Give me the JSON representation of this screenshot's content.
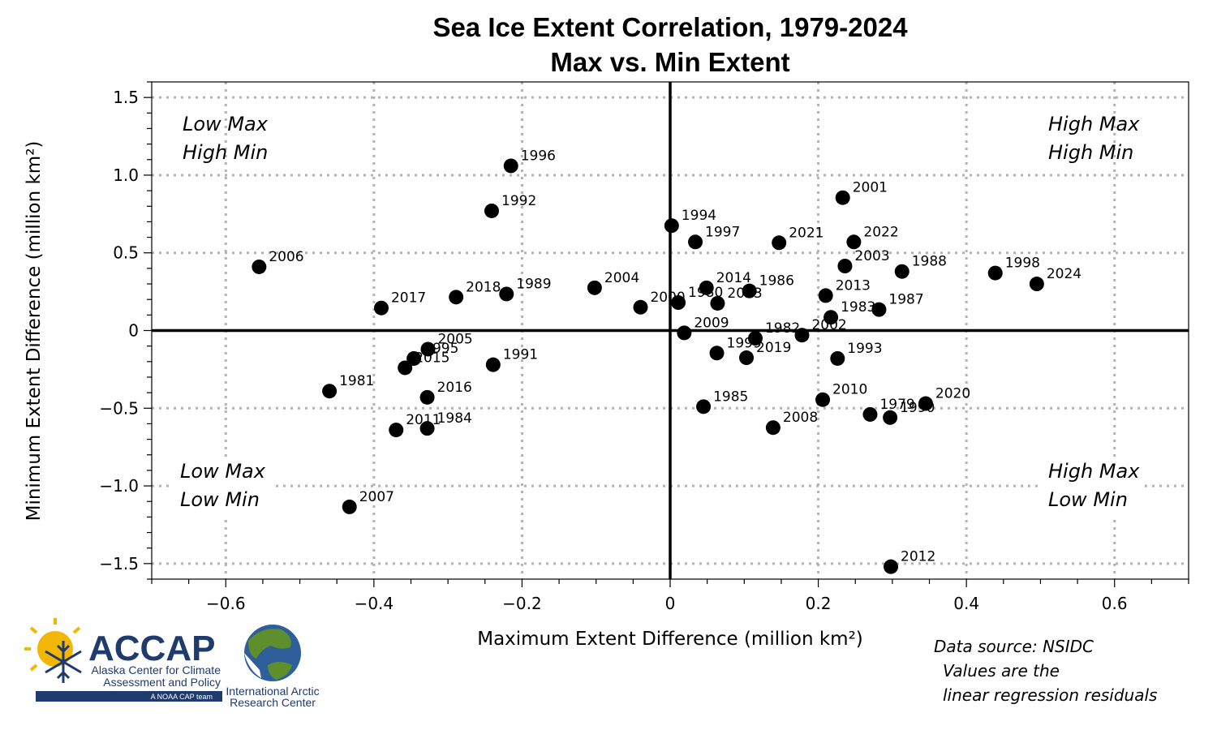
{
  "chart_data": {
    "type": "scatter",
    "title": "Sea Ice Extent Correlation, 1979-2024",
    "subtitle": "Max vs. Min Extent",
    "xlabel": "Maximum Extent Difference (million km²)",
    "ylabel": "Minimum Extent Difference (million km²)",
    "xlim": [
      -0.7,
      0.7
    ],
    "ylim": [
      -1.6,
      1.6
    ],
    "xticks": [
      -0.6,
      -0.4,
      -0.2,
      0,
      0.2,
      0.4,
      0.6
    ],
    "xtick_labels": [
      "−0.6",
      "−0.4",
      "−0.2",
      "0",
      "0.2",
      "0.4",
      "0.6"
    ],
    "yticks": [
      1.5,
      1.0,
      0.5,
      0,
      -0.5,
      -1.0,
      -1.5
    ],
    "ytick_labels": [
      "1.5",
      "1.0",
      "0.5",
      "0",
      "−0.5",
      "−1.0",
      "−1.5"
    ],
    "grid": true,
    "points": [
      {
        "label": "1979",
        "x": 0.27,
        "y": -0.54
      },
      {
        "label": "1980",
        "x": 0.011,
        "y": 0.18
      },
      {
        "label": "1981",
        "x": -0.46,
        "y": -0.39
      },
      {
        "label": "1982",
        "x": 0.115,
        "y": -0.05
      },
      {
        "label": "1983",
        "x": 0.217,
        "y": 0.085
      },
      {
        "label": "1984",
        "x": -0.328,
        "y": -0.63
      },
      {
        "label": "1985",
        "x": 0.045,
        "y": -0.49
      },
      {
        "label": "1986",
        "x": 0.107,
        "y": 0.255
      },
      {
        "label": "1987",
        "x": 0.282,
        "y": 0.135
      },
      {
        "label": "1988",
        "x": 0.313,
        "y": 0.38
      },
      {
        "label": "1989",
        "x": -0.221,
        "y": 0.235
      },
      {
        "label": "1990",
        "x": 0.297,
        "y": -0.56
      },
      {
        "label": "1991",
        "x": -0.239,
        "y": -0.22
      },
      {
        "label": "1992",
        "x": -0.241,
        "y": 0.77
      },
      {
        "label": "1993",
        "x": 0.226,
        "y": -0.18
      },
      {
        "label": "1994",
        "x": 0.002,
        "y": 0.675
      },
      {
        "label": "1995",
        "x": -0.346,
        "y": -0.18
      },
      {
        "label": "1996",
        "x": -0.215,
        "y": 1.06
      },
      {
        "label": "1997",
        "x": 0.034,
        "y": 0.57
      },
      {
        "label": "1998",
        "x": 0.439,
        "y": 0.37
      },
      {
        "label": "1999",
        "x": 0.063,
        "y": -0.145
      },
      {
        "label": "2000",
        "x": -0.04,
        "y": 0.15
      },
      {
        "label": "2001",
        "x": 0.233,
        "y": 0.855
      },
      {
        "label": "2002",
        "x": 0.178,
        "y": -0.03
      },
      {
        "label": "2003",
        "x": 0.236,
        "y": 0.415
      },
      {
        "label": "2004",
        "x": -0.102,
        "y": 0.275
      },
      {
        "label": "2005",
        "x": -0.327,
        "y": -0.12
      },
      {
        "label": "2006",
        "x": -0.555,
        "y": 0.41
      },
      {
        "label": "2007",
        "x": -0.433,
        "y": -1.135
      },
      {
        "label": "2008",
        "x": 0.139,
        "y": -0.625
      },
      {
        "label": "2009",
        "x": 0.019,
        "y": -0.015
      },
      {
        "label": "2010",
        "x": 0.206,
        "y": -0.445
      },
      {
        "label": "2011",
        "x": -0.37,
        "y": -0.64
      },
      {
        "label": "2012",
        "x": 0.298,
        "y": -1.52
      },
      {
        "label": "2013",
        "x": 0.21,
        "y": 0.225
      },
      {
        "label": "2014",
        "x": 0.049,
        "y": 0.275
      },
      {
        "label": "2015",
        "x": -0.358,
        "y": -0.24
      },
      {
        "label": "2016",
        "x": -0.328,
        "y": -0.43
      },
      {
        "label": "2017",
        "x": -0.39,
        "y": 0.145
      },
      {
        "label": "2018",
        "x": -0.289,
        "y": 0.215
      },
      {
        "label": "2019",
        "x": 0.103,
        "y": -0.175
      },
      {
        "label": "2020",
        "x": 0.345,
        "y": -0.47
      },
      {
        "label": "2021",
        "x": 0.147,
        "y": 0.565
      },
      {
        "label": "2022",
        "x": 0.248,
        "y": 0.57
      },
      {
        "label": "2023",
        "x": 0.064,
        "y": 0.175
      },
      {
        "label": "2024",
        "x": 0.495,
        "y": 0.3
      }
    ],
    "quadrant_labels": {
      "top_left": [
        "Low Max",
        "High Min"
      ],
      "top_right": [
        "High Max",
        "High Min"
      ],
      "bottom_left": [
        "Low Max",
        "Low Min"
      ],
      "bottom_right": [
        "High Max",
        "Low Min"
      ]
    },
    "annotations": [
      "Data source: NSIDC",
      "Values are the",
      "linear regression residuals"
    ]
  },
  "logos": {
    "accap_name": "ACCAP",
    "accap_line1": "Alaska Center for Climate",
    "accap_line2": "Assessment and Policy",
    "accap_tag": "A NOAA CAP team",
    "iarc_line1": "International Arctic",
    "iarc_line2": "Research Center"
  },
  "colors": {
    "point": "#000000",
    "grid": "#b3b3b3",
    "accap_blue": "#1f3a6d",
    "sun": "#f2b705",
    "globe_green": "#5f8f2c",
    "globe_blue": "#2f5f9a"
  }
}
